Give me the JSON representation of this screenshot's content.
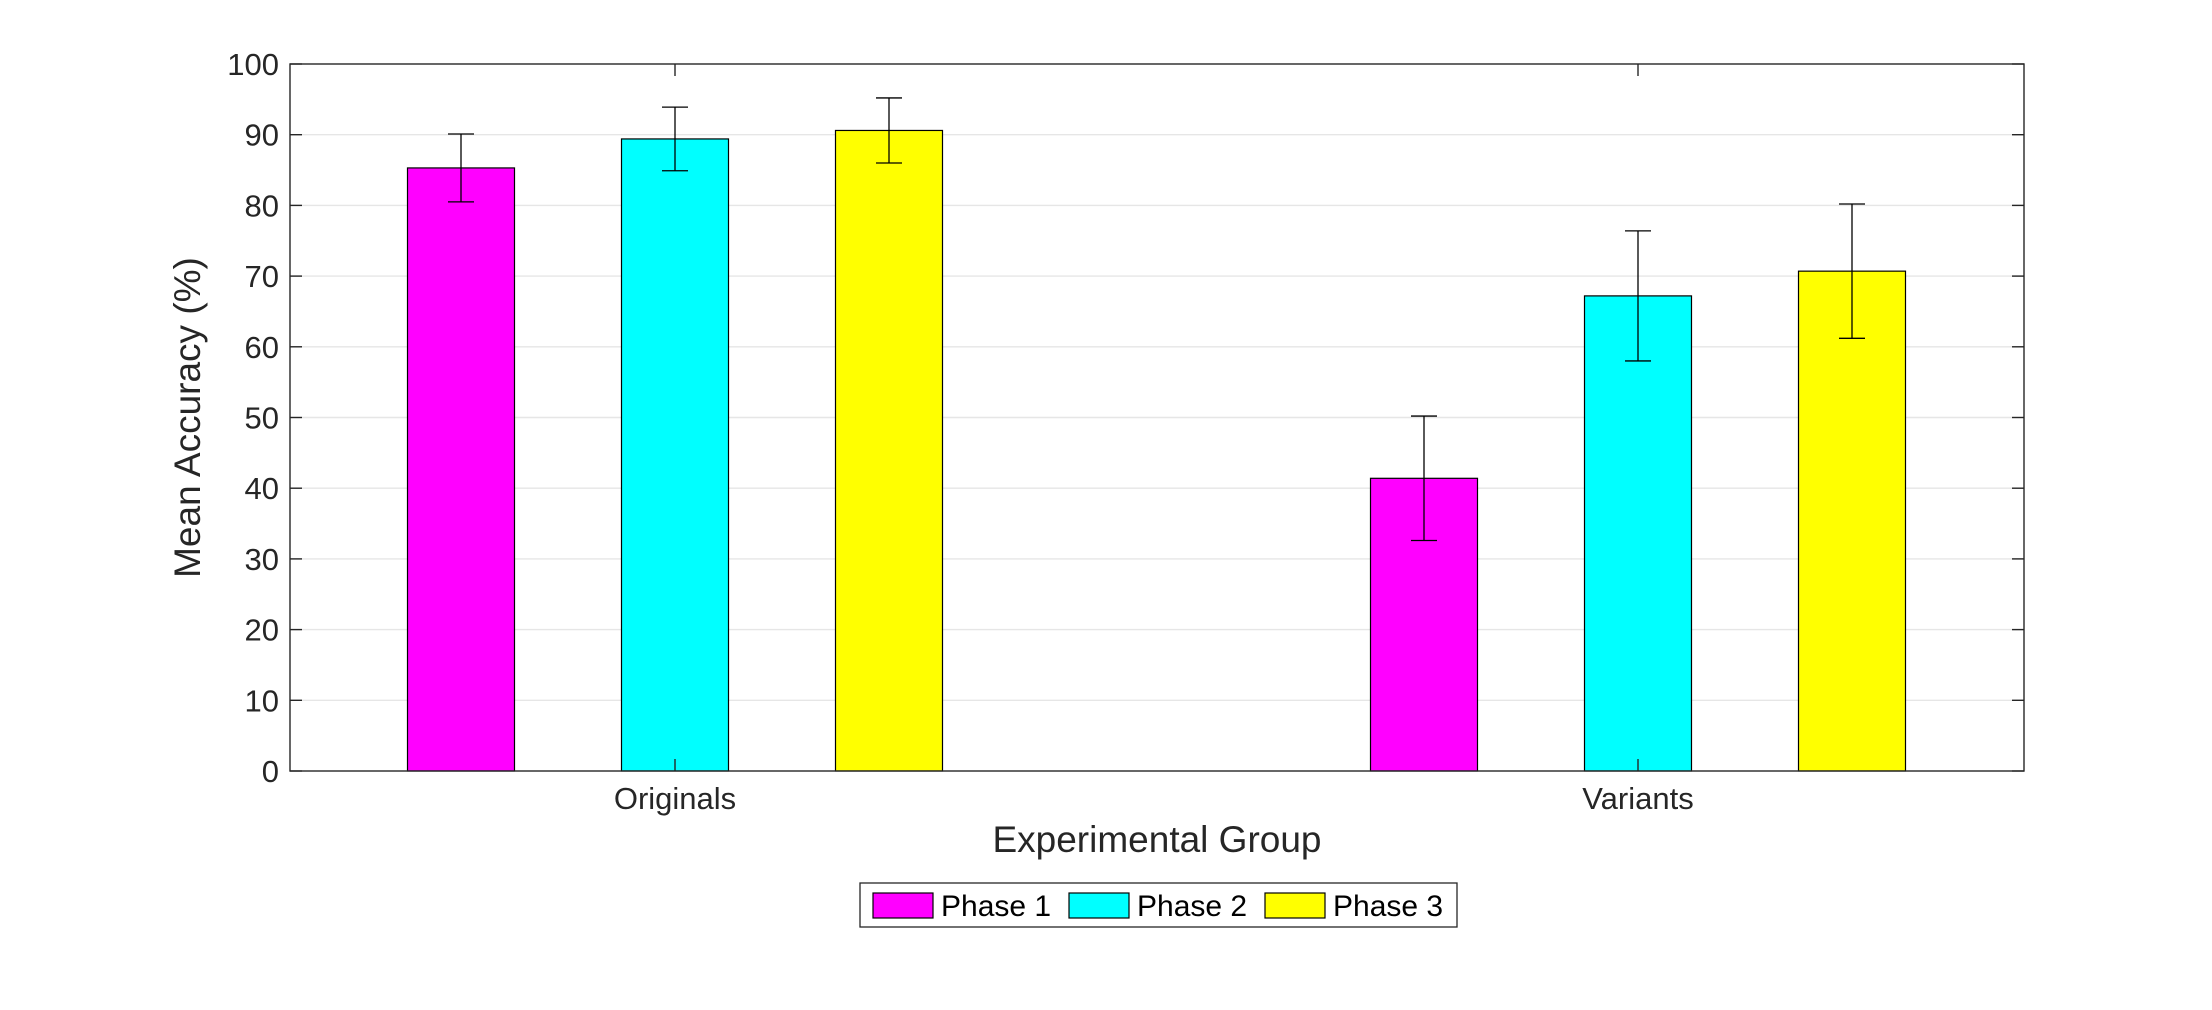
{
  "chart_data": {
    "type": "bar",
    "title": "",
    "xlabel": "Experimental Group",
    "ylabel": "Mean Accuracy (%)",
    "categories": [
      "Originals",
      "Variants"
    ],
    "ylim": [
      0,
      100
    ],
    "yticks": [
      0,
      10,
      20,
      30,
      40,
      50,
      60,
      70,
      80,
      90,
      100
    ],
    "grid": true,
    "legend_position": "bottom-center",
    "series": [
      {
        "name": "Phase 1",
        "color": "#ff00ff",
        "values": [
          85.3,
          41.4
        ],
        "errors": [
          4.8,
          8.8
        ]
      },
      {
        "name": "Phase 2",
        "color": "#00ffff",
        "values": [
          89.4,
          67.2
        ],
        "errors": [
          4.5,
          9.2
        ]
      },
      {
        "name": "Phase 3",
        "color": "#ffff00",
        "values": [
          90.6,
          70.7
        ],
        "errors": [
          4.6,
          9.5
        ]
      }
    ]
  }
}
